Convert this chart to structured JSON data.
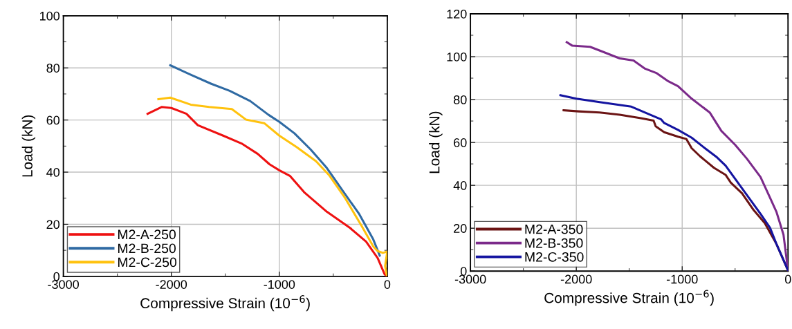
{
  "chart_data": [
    {
      "type": "line",
      "xlabel": "Compressive Strain (10$^{−6}$)",
      "ylabel": "Load (kN)",
      "xlim": [
        -3000,
        0
      ],
      "ylim": [
        0,
        100
      ],
      "xticks": [
        -3000,
        {
          "value": -2500,
          "label": null
        },
        -2000,
        {
          "value": -1500,
          "label": null
        },
        -1000,
        {
          "value": -500,
          "label": null
        },
        0
      ],
      "yticks": [
        0,
        {
          "value": 10,
          "label": null
        },
        20,
        {
          "value": 30,
          "label": null
        },
        40,
        {
          "value": 50,
          "label": null
        },
        60,
        {
          "value": 70,
          "label": null
        },
        80,
        {
          "value": 90,
          "label": null
        },
        100
      ],
      "grid": true,
      "legend": "bottom left",
      "series": [
        {
          "name": "M2-A-250",
          "color": "#ee1111",
          "x": [
            -2220,
            -2090,
            -2000,
            -1860,
            -1755,
            -1520,
            -1350,
            -1200,
            -1090,
            -1000,
            -900,
            -770,
            -560,
            -345,
            -196,
            -89,
            -26,
            -4
          ],
          "values": [
            62.4,
            65,
            64.6,
            62.4,
            58,
            54,
            51,
            47,
            43,
            40.7,
            38.5,
            32.3,
            24.8,
            18.6,
            13.3,
            7,
            0.9,
            0
          ]
        },
        {
          "name": "M2-B-250",
          "color": "#2f6aa3",
          "x": [
            -2010,
            -1820,
            -1630,
            -1460,
            -1270,
            -1100,
            -1000,
            -860,
            -710,
            -560,
            -410,
            -260,
            -130,
            -70
          ],
          "values": [
            81,
            77.4,
            73.9,
            71.2,
            67.3,
            62,
            59.3,
            54.9,
            48.7,
            41.6,
            32.7,
            23.9,
            14.2,
            8
          ]
        },
        {
          "name": "M2-C-250",
          "color": "#ffc20e",
          "x": [
            -2120,
            -2010,
            -1820,
            -1650,
            -1440,
            -1310,
            -1140,
            -1000,
            -840,
            -660,
            -540,
            -390,
            -240,
            -130,
            -90,
            -40,
            0,
            -20,
            -5
          ],
          "values": [
            68,
            68.6,
            65.9,
            65,
            64.2,
            60.2,
            58.8,
            54,
            49.6,
            44.2,
            38.9,
            30,
            19.5,
            11.5,
            9.7,
            9,
            9.5,
            4,
            0.5
          ]
        }
      ]
    },
    {
      "type": "line",
      "xlabel": "Compressive Strain (10$^{−6}$)",
      "ylabel": "Load (kN)",
      "xlim": [
        -3000,
        0
      ],
      "ylim": [
        0,
        120
      ],
      "xticks": [
        -3000,
        {
          "value": -2500,
          "label": null
        },
        -2000,
        {
          "value": -1500,
          "label": null
        },
        -1000,
        {
          "value": -500,
          "label": null
        },
        0
      ],
      "yticks": [
        0,
        {
          "value": 10,
          "label": null
        },
        20,
        {
          "value": 30,
          "label": null
        },
        40,
        {
          "value": 50,
          "label": null
        },
        60,
        {
          "value": 70,
          "label": null
        },
        80,
        {
          "value": 90,
          "label": null
        },
        100,
        {
          "value": 110,
          "label": null
        },
        120
      ],
      "grid": true,
      "legend": "bottom left",
      "series": [
        {
          "name": "M2-A-350",
          "color": "#6b1414",
          "x": [
            -2120,
            -1980,
            -1780,
            -1590,
            -1390,
            -1270,
            -1250,
            -1170,
            -1040,
            -960,
            -910,
            -830,
            -700,
            -590,
            -540,
            -435,
            -330,
            -220,
            -110,
            0
          ],
          "values": [
            75,
            74.5,
            74,
            72.9,
            71.3,
            70.2,
            67.5,
            64.8,
            62.7,
            61.6,
            57.3,
            53.5,
            48.2,
            44.9,
            41.2,
            36.3,
            28.8,
            22.4,
            12.7,
            0.3
          ]
        },
        {
          "name": "M2-B-350",
          "color": "#7b2a8a",
          "x": [
            -2090,
            -2040,
            -1870,
            -1760,
            -1590,
            -1460,
            -1350,
            -1240,
            -1130,
            -1040,
            -910,
            -740,
            -630,
            -500,
            -390,
            -260,
            -170,
            -110,
            -43,
            0
          ],
          "values": [
            106.8,
            105.2,
            104.6,
            102.5,
            99.2,
            98.2,
            94.4,
            92.3,
            88.5,
            86.3,
            80.4,
            74,
            65.4,
            58.9,
            52.5,
            43.9,
            34.2,
            27.7,
            17,
            0.3
          ]
        },
        {
          "name": "M2-C-350",
          "color": "#1414a0",
          "x": [
            -2150,
            -2000,
            -1780,
            -1480,
            -1300,
            -1200,
            -1170,
            -1040,
            -910,
            -800,
            -670,
            -590,
            -480,
            -370,
            -260,
            -170,
            -110,
            -43,
            0
          ],
          "values": [
            82,
            80.4,
            78.8,
            76.7,
            72.9,
            70.8,
            69.1,
            65.9,
            62.2,
            57.9,
            53,
            49.2,
            41.7,
            34.2,
            26.7,
            20.2,
            12.7,
            5.2,
            0.3
          ]
        }
      ]
    }
  ]
}
